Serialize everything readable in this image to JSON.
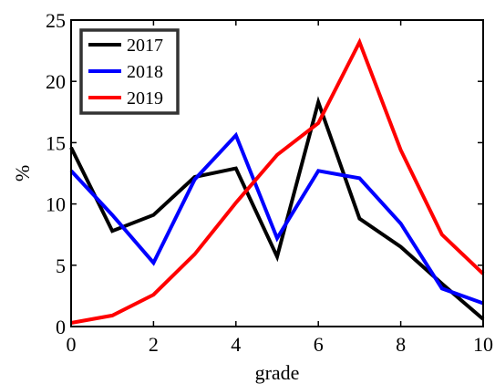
{
  "chart_data": {
    "type": "line",
    "xlabel": "grade",
    "ylabel": "%",
    "xlim": [
      0,
      10
    ],
    "ylim": [
      0,
      25
    ],
    "xticks": [
      0,
      2,
      4,
      6,
      8,
      10
    ],
    "yticks": [
      0,
      5,
      10,
      15,
      20,
      25
    ],
    "grid": false,
    "legend_position": "top-left",
    "x": [
      0,
      1,
      2,
      3,
      4,
      5,
      6,
      7,
      8,
      9,
      10
    ],
    "series": [
      {
        "name": "2017",
        "color": "#000000",
        "values": [
          14.6,
          7.8,
          9.1,
          12.2,
          12.9,
          5.7,
          18.3,
          8.8,
          6.5,
          3.5,
          0.6
        ]
      },
      {
        "name": "2018",
        "color": "#0000ff",
        "values": [
          12.7,
          9.1,
          5.2,
          12.0,
          15.6,
          7.2,
          12.7,
          12.1,
          8.4,
          3.1,
          1.9
        ]
      },
      {
        "name": "2019",
        "color": "#ff0000",
        "values": [
          0.3,
          0.9,
          2.6,
          5.9,
          10.1,
          14.0,
          16.6,
          23.2,
          14.4,
          7.5,
          4.3
        ]
      }
    ]
  }
}
